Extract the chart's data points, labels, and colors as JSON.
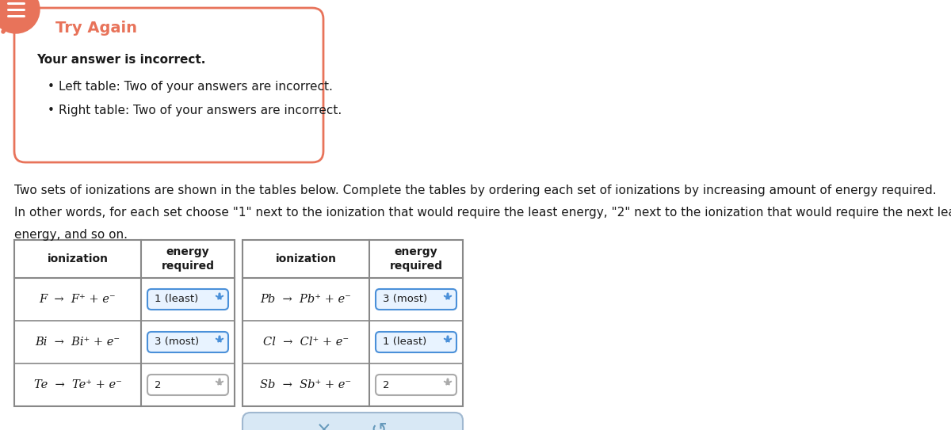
{
  "bg_color": "#ffffff",
  "alert_border_color": "#e8735a",
  "alert_icon_color": "#e8735a",
  "alert_title": "Try Again",
  "alert_title_color": "#e8735a",
  "alert_body": "Your answer is incorrect.",
  "alert_bullets": [
    "Left table: Two of your answers are incorrect.",
    "Right table: Two of your answers are incorrect."
  ],
  "desc1": "Two sets of ionizations are shown in the tables below. Complete the tables by ordering each set of ionizations by increasing amount of energy required.",
  "desc2": "In other words, for each set choose \"1\" next to the ionization that would require the least energy, \"2\" next to the ionization that would require the next least",
  "desc3": "energy, and so on.",
  "table_border_color": "#888888",
  "header_font_size": 10,
  "row_font_size": 10,
  "dropdown_border_highlighted": "#4a90d9",
  "dropdown_bg_highlighted": "#e8f3ff",
  "dropdown_border_normal": "#aaaaaa",
  "dropdown_bg_normal": "#ffffff",
  "dropdown_arrow_color": "#4a90d9",
  "left_rows": [
    {
      "ion_text": "F",
      "value": "1 (least)",
      "highlighted": true
    },
    {
      "ion_text": "Bi",
      "value": "3 (most)",
      "highlighted": true
    },
    {
      "ion_text": "Te",
      "value": "2",
      "highlighted": false
    }
  ],
  "right_rows": [
    {
      "ion_text": "Pb",
      "value": "3 (most)",
      "highlighted": true
    },
    {
      "ion_text": "Cl",
      "value": "1 (least)",
      "highlighted": true
    },
    {
      "ion_text": "Sb",
      "value": "2",
      "highlighted": false
    }
  ],
  "btn_bg": "#d8e8f5",
  "btn_border": "#a0b8d0",
  "btn_x_color": "#6699bb",
  "btn_refresh_color": "#6699bb"
}
